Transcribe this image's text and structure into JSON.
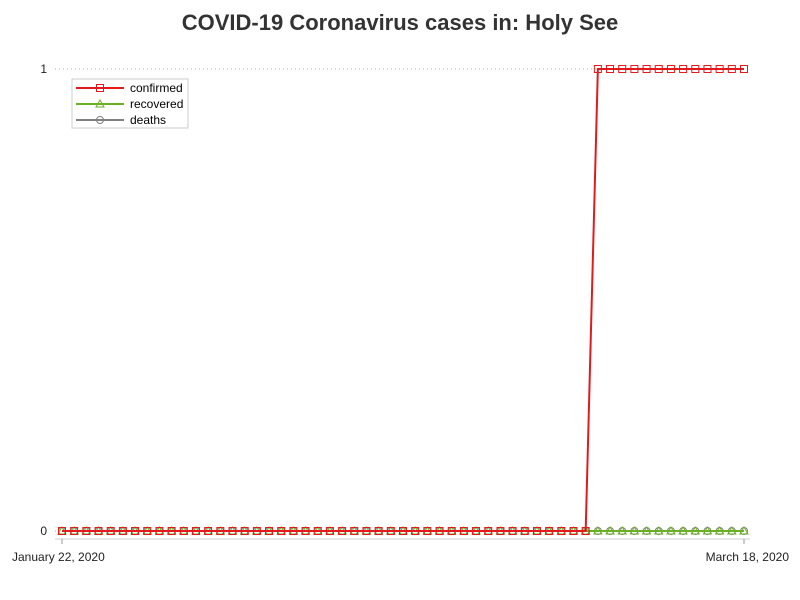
{
  "chart_data": {
    "type": "line",
    "title": "COVID-19 Coronavirus cases in: Holy See",
    "xlabel": "",
    "ylabel": "",
    "x_start": "January 22, 2020",
    "x_end": "March 18, 2020",
    "x_tick_labels": [
      "January 22, 2020",
      "March 18, 2020"
    ],
    "y_tick_labels": [
      "0",
      "1"
    ],
    "ylim": [
      0,
      1
    ],
    "grid": "horizontal dotted",
    "legend_position": "top-left",
    "series": [
      {
        "name": "confirmed",
        "color": "#e31a1c",
        "marker": "square",
        "values": [
          0,
          0,
          0,
          0,
          0,
          0,
          0,
          0,
          0,
          0,
          0,
          0,
          0,
          0,
          0,
          0,
          0,
          0,
          0,
          0,
          0,
          0,
          0,
          0,
          0,
          0,
          0,
          0,
          0,
          0,
          0,
          0,
          0,
          0,
          0,
          0,
          0,
          0,
          0,
          0,
          0,
          0,
          0,
          0,
          1,
          1,
          1,
          1,
          1,
          1,
          1,
          1,
          1,
          1,
          1,
          1,
          1
        ]
      },
      {
        "name": "recovered",
        "color": "#6ab023",
        "marker": "triangle",
        "values": [
          0,
          0,
          0,
          0,
          0,
          0,
          0,
          0,
          0,
          0,
          0,
          0,
          0,
          0,
          0,
          0,
          0,
          0,
          0,
          0,
          0,
          0,
          0,
          0,
          0,
          0,
          0,
          0,
          0,
          0,
          0,
          0,
          0,
          0,
          0,
          0,
          0,
          0,
          0,
          0,
          0,
          0,
          0,
          0,
          0,
          0,
          0,
          0,
          0,
          0,
          0,
          0,
          0,
          0,
          0,
          0,
          0
        ]
      },
      {
        "name": "deaths",
        "color": "#808080",
        "marker": "circle",
        "values": [
          0,
          0,
          0,
          0,
          0,
          0,
          0,
          0,
          0,
          0,
          0,
          0,
          0,
          0,
          0,
          0,
          0,
          0,
          0,
          0,
          0,
          0,
          0,
          0,
          0,
          0,
          0,
          0,
          0,
          0,
          0,
          0,
          0,
          0,
          0,
          0,
          0,
          0,
          0,
          0,
          0,
          0,
          0,
          0,
          0,
          0,
          0,
          0,
          0,
          0,
          0,
          0,
          0,
          0,
          0,
          0,
          0
        ]
      }
    ]
  }
}
